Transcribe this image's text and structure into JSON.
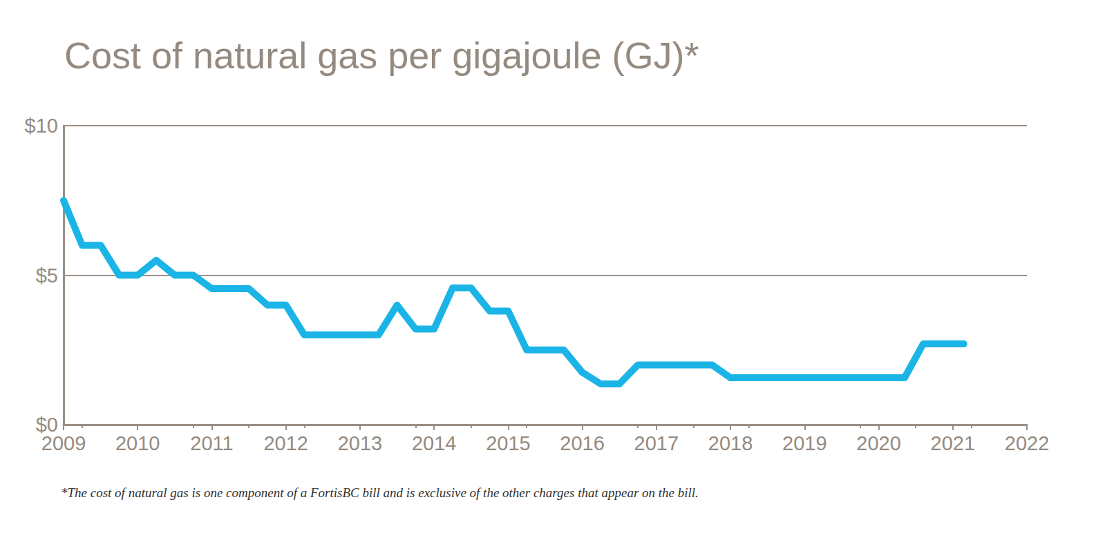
{
  "chart_data": {
    "type": "line",
    "title": "Cost of natural gas per gigajoule (GJ)*",
    "footnote": "*The cost of natural gas is one component of a FortisBC bill and is exclusive of the other charges that appear on the bill.",
    "x": [
      2009.0,
      2009.25,
      2009.5,
      2009.75,
      2010.0,
      2010.25,
      2010.5,
      2010.75,
      2011.0,
      2011.5,
      2011.75,
      2012.0,
      2012.25,
      2013.25,
      2013.5,
      2013.75,
      2014.0,
      2014.25,
      2014.5,
      2014.75,
      2015.0,
      2015.25,
      2015.75,
      2016.0,
      2016.25,
      2016.5,
      2016.75,
      2017.75,
      2018.0,
      2020.35,
      2020.6,
      2021.15
    ],
    "values": [
      7.5,
      6.0,
      6.0,
      5.0,
      5.0,
      5.5,
      5.0,
      5.0,
      4.55,
      4.55,
      4.0,
      4.0,
      3.0,
      3.0,
      4.0,
      3.2,
      3.2,
      4.57,
      4.57,
      3.8,
      3.8,
      2.5,
      2.5,
      1.75,
      1.36,
      1.36,
      2.0,
      2.0,
      1.57,
      1.57,
      2.7,
      2.7
    ],
    "color": "#1ab5e6",
    "xlim": [
      2009,
      2022
    ],
    "xticks": [
      2009,
      2010,
      2011,
      2012,
      2013,
      2014,
      2015,
      2016,
      2017,
      2018,
      2019,
      2020,
      2021,
      2022
    ],
    "ylim": [
      0,
      10
    ],
    "yticks": [
      {
        "value": 0,
        "label": "$0"
      },
      {
        "value": 5,
        "label": "$5"
      },
      {
        "value": 10,
        "label": "$10"
      }
    ],
    "grid": true
  }
}
